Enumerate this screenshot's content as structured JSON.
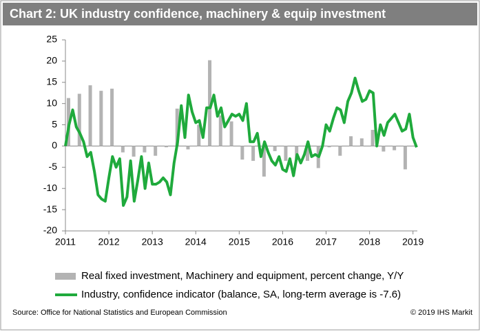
{
  "chart_data": {
    "type": "combo",
    "title": "Chart 2: UK industry confidence, machinery & equip investment",
    "source": "Source: Office for National Statistics and European Commission",
    "copyright": "© 2019 IHS Markit",
    "xlim": [
      2011,
      2019.1
    ],
    "xticks": [
      2011,
      2012,
      2013,
      2014,
      2015,
      2016,
      2017,
      2018,
      2019
    ],
    "ylim": [
      -20,
      25
    ],
    "yticks": [
      -20,
      -15,
      -10,
      -5,
      0,
      5,
      10,
      15,
      20,
      25
    ],
    "series": [
      {
        "name": "Real fixed investment, Machinery and equipment, percent change, Y/Y",
        "type": "bar",
        "color": "#b3b3b3",
        "x": [
          2011,
          2011.25,
          2011.5,
          2011.75,
          2012,
          2012.25,
          2012.5,
          2012.75,
          2013,
          2013.25,
          2013.5,
          2013.75,
          2014,
          2014.25,
          2014.5,
          2014.75,
          2015,
          2015.25,
          2015.5,
          2015.75,
          2016,
          2016.25,
          2016.5,
          2016.75,
          2017,
          2017.25,
          2017.5,
          2017.75,
          2018,
          2018.25,
          2018.5,
          2018.75
        ],
        "values": [
          11.3,
          12.3,
          14.3,
          13.0,
          13.5,
          -1.5,
          -2.5,
          -1.5,
          -2.3,
          -0.3,
          8.8,
          -0.8,
          5.0,
          20.2,
          7.2,
          5.8,
          -3.2,
          -3.5,
          -7.2,
          -1.2,
          -3.5,
          -3.0,
          -3.5,
          -5.2,
          -0.3,
          -2.3,
          2.3,
          1.8,
          3.8,
          -1.3,
          -1.0,
          -5.5
        ]
      },
      {
        "name": "Industry, confidence indicator (balance, SA, long-term average is -7.6)",
        "type": "line",
        "color": "#1faa3c",
        "x": [
          2011,
          2011.083,
          2011.167,
          2011.25,
          2011.333,
          2011.417,
          2011.5,
          2011.583,
          2011.667,
          2011.75,
          2011.833,
          2011.917,
          2012,
          2012.083,
          2012.167,
          2012.25,
          2012.333,
          2012.417,
          2012.5,
          2012.583,
          2012.667,
          2012.75,
          2012.833,
          2012.917,
          2013,
          2013.083,
          2013.167,
          2013.25,
          2013.333,
          2013.417,
          2013.5,
          2013.583,
          2013.667,
          2013.75,
          2013.833,
          2013.917,
          2014,
          2014.083,
          2014.167,
          2014.25,
          2014.333,
          2014.417,
          2014.5,
          2014.583,
          2014.667,
          2014.75,
          2014.833,
          2014.917,
          2015,
          2015.083,
          2015.167,
          2015.25,
          2015.333,
          2015.417,
          2015.5,
          2015.583,
          2015.667,
          2015.75,
          2015.833,
          2015.917,
          2016,
          2016.083,
          2016.167,
          2016.25,
          2016.333,
          2016.417,
          2016.5,
          2016.583,
          2016.667,
          2016.75,
          2016.833,
          2016.917,
          2017,
          2017.083,
          2017.167,
          2017.25,
          2017.333,
          2017.417,
          2017.5,
          2017.583,
          2017.667,
          2017.75,
          2017.833,
          2017.917,
          2018,
          2018.083,
          2018.167,
          2018.25,
          2018.333,
          2018.417,
          2018.5,
          2018.583,
          2018.667,
          2018.75,
          2018.833,
          2018.917,
          2019,
          2019.083
        ],
        "values": [
          0,
          5,
          8.5,
          4.5,
          3,
          1,
          -2.5,
          -1.5,
          -6,
          -11.5,
          -12.5,
          -13,
          -7.5,
          -2.5,
          -5,
          -3,
          -14,
          -12,
          -3.5,
          -13,
          -8,
          -2.5,
          -10,
          -4,
          -9,
          -9,
          -8.5,
          -7.5,
          -8.5,
          -11.5,
          -4,
          1,
          9.5,
          2,
          12,
          8,
          5.5,
          6,
          2,
          9,
          9,
          12,
          7,
          9,
          4.5,
          6,
          7.5,
          7,
          7.5,
          6,
          10,
          1,
          1,
          3,
          -2.5,
          1,
          -1.5,
          -3.5,
          -4.5,
          -2.5,
          -5.5,
          -6,
          -3,
          -7,
          -2,
          -4,
          -2,
          1,
          -2.5,
          -2,
          -2.5,
          0,
          5,
          3.5,
          6.5,
          9,
          8.5,
          5.5,
          10.5,
          12.5,
          16,
          13,
          10.5,
          11,
          13,
          12.5,
          0,
          5,
          2.5,
          5.5,
          6.5,
          7.5,
          5.5,
          3.5,
          4,
          7.5,
          2,
          -0.3
        ]
      }
    ]
  }
}
